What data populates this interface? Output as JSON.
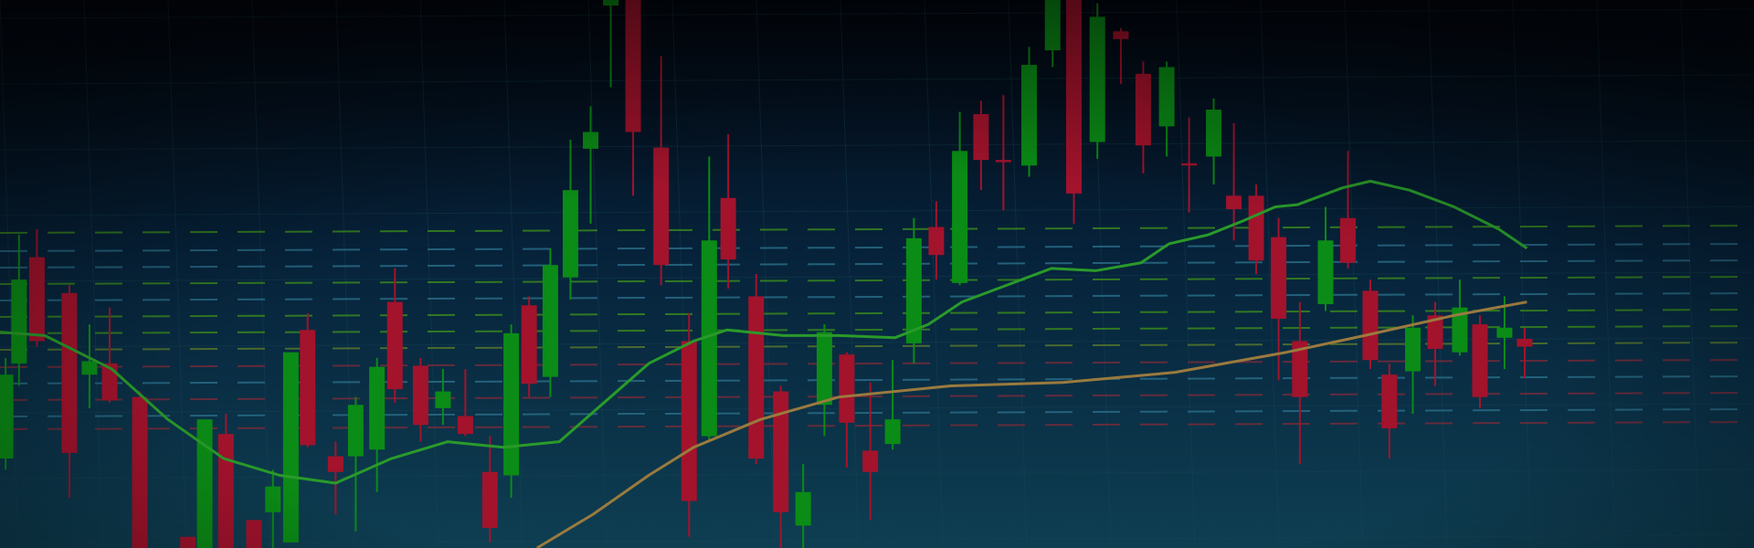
{
  "chart_data": {
    "type": "candlestick",
    "x": [
      5,
      17,
      33,
      62,
      80,
      98,
      125,
      168,
      183,
      202,
      227,
      244,
      260,
      275,
      300,
      318,
      337,
      353,
      376,
      396,
      416,
      438,
      457,
      473,
      492,
      510,
      528,
      546,
      566,
      591,
      616,
      634,
      651,
      676,
      698,
      718,
      737,
      757,
      778,
      798,
      817,
      837,
      858,
      877,
      897,
      920,
      941,
      960,
      981,
      1002,
      1022,
      1043,
      1063,
      1085,
      1103,
      1123,
      1143,
      1162,
      1185,
      1205,
      1225,
      1242,
      1263,
      1283,
      1305,
      1323,
      1345,
      1363
    ],
    "open": [
      80,
      165,
      260,
      228,
      155,
      165,
      135,
      10,
      0,
      102,
      25,
      32,
      5,
      195,
      82,
      82,
      88,
      220,
      163,
      125,
      118,
      68,
      65,
      217,
      153,
      242,
      357,
      485,
      490,
      358,
      185,
      100,
      313,
      225,
      140,
      20,
      128,
      173,
      87,
      93,
      183,
      287,
      237,
      388,
      347,
      342,
      445,
      490,
      363,
      462,
      424,
      377,
      344,
      350,
      315,
      315,
      278,
      185,
      218,
      295,
      230,
      155,
      158,
      208,
      175,
      200,
      188,
      187
    ],
    "high": [
      170,
      280,
      285,
      235,
      200,
      215,
      140,
      10,
      115,
      120,
      25,
      70,
      175,
      210,
      95,
      135,
      170,
      250,
      170,
      160,
      160,
      100,
      200,
      225,
      268,
      365,
      395,
      490,
      490,
      440,
      210,
      350,
      370,
      245,
      145,
      75,
      200,
      175,
      148,
      168,
      295,
      310,
      390,
      400,
      405,
      448,
      490,
      490,
      487,
      465,
      435,
      435,
      385,
      402,
      380,
      325,
      295,
      220,
      305,
      355,
      240,
      165,
      208,
      220,
      240,
      208,
      225,
      197
    ],
    "low": [
      70,
      145,
      180,
      45,
      125,
      130,
      0,
      0,
      0,
      0,
      0,
      0,
      5,
      90,
      30,
      15,
      50,
      130,
      95,
      110,
      100,
      5,
      45,
      135,
      135,
      222,
      290,
      412,
      315,
      235,
      10,
      95,
      232,
      75,
      0,
      0,
      100,
      72,
      25,
      88,
      165,
      240,
      235,
      320,
      302,
      332,
      430,
      290,
      348,
      415,
      335,
      350,
      300,
      325,
      275,
      245,
      150,
      75,
      212,
      250,
      160,
      80,
      120,
      145,
      172,
      125,
      160,
      152
    ],
    "close": [
      155,
      240,
      185,
      85,
      167,
      132,
      0,
      0,
      115,
      0,
      0,
      55,
      175,
      92,
      68,
      128,
      162,
      142,
      110,
      140,
      102,
      18,
      192,
      147,
      253,
      320,
      372,
      490,
      372,
      253,
      42,
      275,
      258,
      80,
      32,
      50,
      193,
      112,
      68,
      115,
      277,
      262,
      355,
      347,
      345,
      432,
      490,
      317,
      475,
      455,
      360,
      430,
      342,
      392,
      303,
      257,
      205,
      135,
      275,
      255,
      168,
      107,
      197,
      178,
      215,
      135,
      197,
      180
    ],
    "up_color": "#0b8c16",
    "down_color": "#a3132c",
    "overlays": [
      {
        "color": "#2a9a2a",
        "x": [
          0,
          40,
          100,
          150,
          200,
          250,
          300,
          350,
          400,
          450,
          500,
          540,
          580,
          620,
          650,
          700,
          750,
          800,
          830,
          860,
          900,
          940,
          980,
          1020,
          1045,
          1080,
          1110,
          1140,
          1160,
          1200,
          1225,
          1260,
          1300,
          1340,
          1365
        ],
        "values": [
          193,
          190,
          160,
          115,
          80,
          65,
          58,
          80,
          95,
          90,
          95,
          130,
          165,
          185,
          195,
          190,
          190,
          188,
          200,
          220,
          235,
          250,
          248,
          255,
          272,
          280,
          292,
          305,
          307,
          322,
          328,
          320,
          305,
          285,
          268
        ]
      },
      {
        "color": "#9a7a3e",
        "x": [
          480,
          530,
          580,
          620,
          680,
          750,
          850,
          950,
          1050,
          1150,
          1220,
          1300,
          1365
        ],
        "values": [
          0,
          30,
          65,
          90,
          115,
          135,
          145,
          148,
          157,
          175,
          190,
          208,
          220
        ]
      }
    ],
    "xlim": [
      0,
      1568
    ],
    "ylim": [
      0,
      490
    ]
  }
}
